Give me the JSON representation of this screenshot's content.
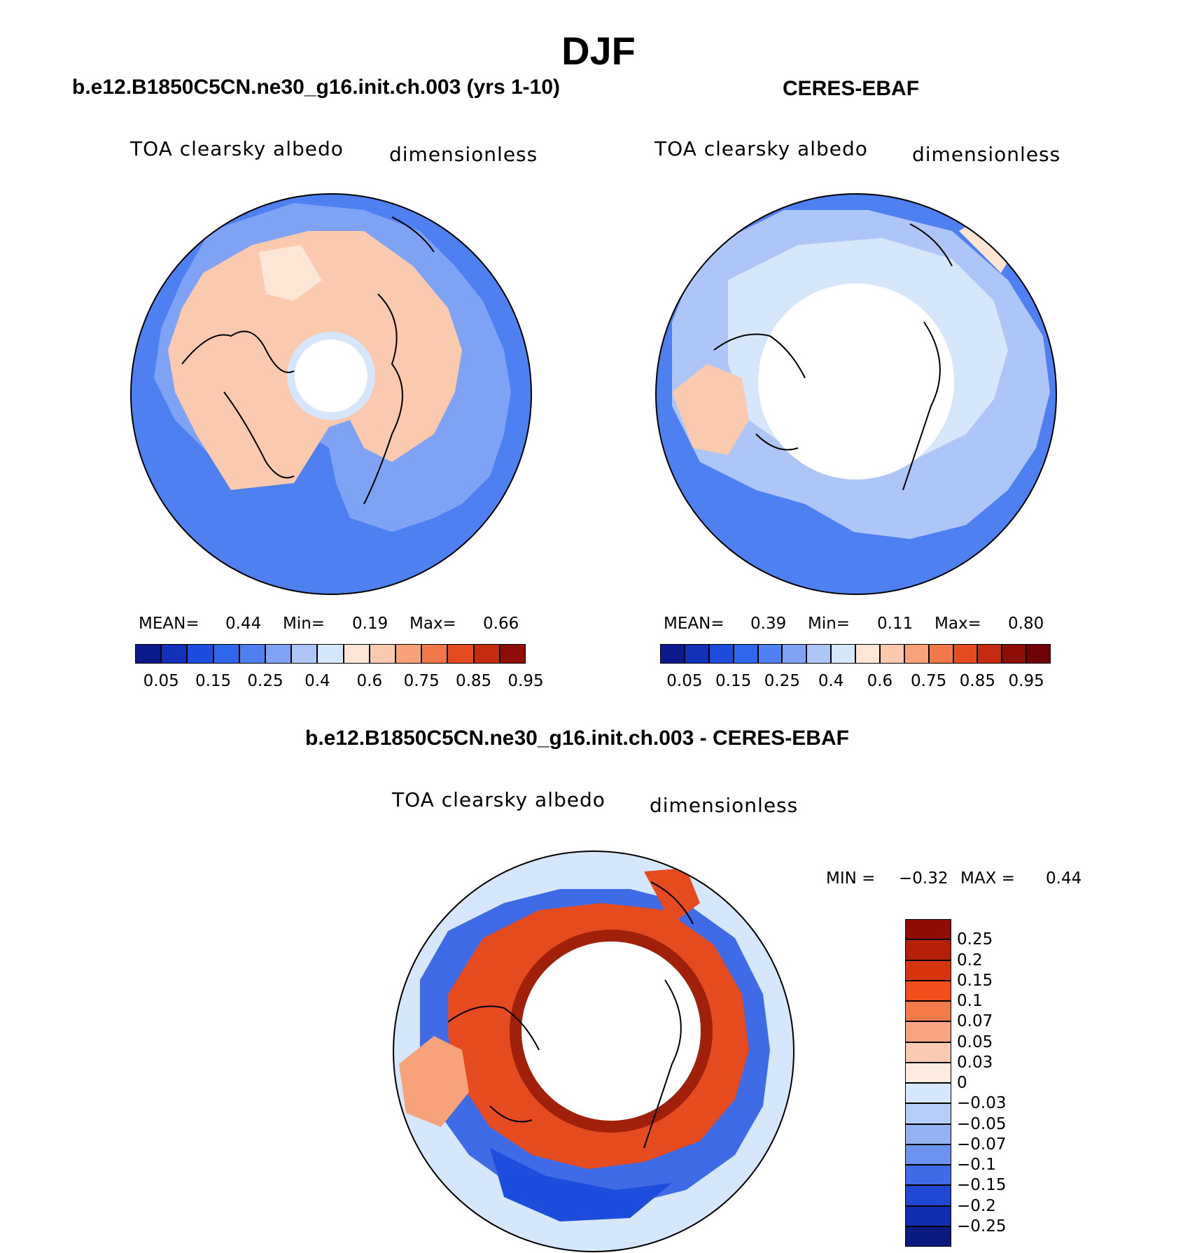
{
  "figure": {
    "title": "DJF"
  },
  "panels": [
    {
      "caption": "b.e12.B1850C5CN.ne30_g16.init.ch.003 (yrs 1-10)",
      "variable": "TOA clearsky albedo",
      "units": "dimensionless",
      "stats": {
        "mean_label": "MEAN=",
        "mean": "0.44",
        "min_label": "Min=",
        "min": "0.19",
        "max_label": "Max=",
        "max": "0.66"
      },
      "colorbar": {
        "colors": [
          "#0a1a8a",
          "#1230b8",
          "#1c4ddc",
          "#2f66ee",
          "#4e80f2",
          "#7ea2f4",
          "#aec6f7",
          "#d6e6fb",
          "#fde6d6",
          "#fbc9ad",
          "#f7a27a",
          "#f27849",
          "#e54b1f",
          "#c42a0e",
          "#8e0d05"
        ],
        "ticks": [
          "0.05",
          "0.15",
          "0.25",
          "0.4",
          "0.6",
          "0.75",
          "0.85",
          "0.95"
        ]
      }
    },
    {
      "caption": "CERES-EBAF",
      "variable": "TOA clearsky albedo",
      "units": "dimensionless",
      "stats": {
        "mean_label": "MEAN=",
        "mean": "0.39",
        "min_label": "Min=",
        "min": "0.11",
        "max_label": "Max=",
        "max": "0.80"
      },
      "colorbar": {
        "colors": [
          "#0a1a8a",
          "#1230b8",
          "#1c4ddc",
          "#2f66ee",
          "#4e80f2",
          "#7ea2f4",
          "#aec6f7",
          "#d6e6fb",
          "#fde6d6",
          "#fbc9ad",
          "#f7a27a",
          "#f27849",
          "#e54b1f",
          "#c42a0e",
          "#8e0d05",
          "#6e0405"
        ],
        "ticks": [
          "0.05",
          "0.15",
          "0.25",
          "0.4",
          "0.6",
          "0.75",
          "0.85",
          "0.95"
        ]
      }
    },
    {
      "caption": "b.e12.B1850C5CN.ne30_g16.init.ch.003 - CERES-EBAF",
      "variable": "TOA clearsky albedo",
      "units": "dimensionless",
      "stats": {
        "min_label": "MIN =",
        "min": "−0.32",
        "max_label": "MAX =",
        "max": "0.44"
      },
      "colorbar": {
        "colors": [
          "#8e0d05",
          "#b52008",
          "#d8340f",
          "#f04e1c",
          "#f47a4c",
          "#f8a482",
          "#fbcab2",
          "#fdebdf",
          "#d6e6fb",
          "#b5cdf7",
          "#94b2f3",
          "#6c93ef",
          "#3f6be6",
          "#2048d3",
          "#0f2fb0",
          "#0a1a80"
        ],
        "ticks": [
          "0.25",
          "0.2",
          "0.15",
          "0.1",
          "0.07",
          "0.05",
          "0.03",
          "0",
          "−0.03",
          "−0.05",
          "−0.07",
          "−0.1",
          "−0.15",
          "−0.2",
          "−0.25"
        ]
      }
    }
  ]
}
